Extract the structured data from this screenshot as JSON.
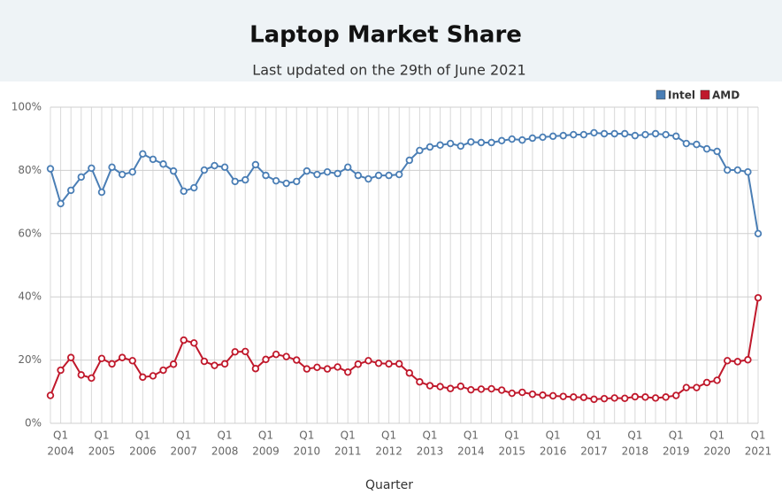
{
  "chart_data": {
    "type": "line",
    "title": "Laptop Market Share",
    "subtitle": "Last updated on the 29th of June 2021",
    "x_label": "Quarter",
    "categories": [
      null,
      "Q1",
      null,
      null,
      null,
      "Q1",
      null,
      null,
      null,
      "Q1",
      null,
      null,
      null,
      "Q1",
      null,
      null,
      null,
      "Q1",
      null,
      null,
      null,
      "Q1",
      null,
      null,
      null,
      "Q1",
      null,
      null,
      null,
      "Q1",
      null,
      null,
      null,
      "Q1",
      null,
      null,
      null,
      "Q1",
      null,
      null,
      null,
      "Q1",
      null,
      null,
      null,
      "Q1",
      null,
      null,
      null,
      "Q1",
      null,
      null,
      null,
      "Q1",
      null,
      null,
      null,
      "Q1",
      null,
      null,
      null,
      "Q1",
      null,
      null,
      null,
      "Q1",
      null,
      null,
      null,
      "Q1"
    ],
    "category_years": [
      null,
      "2004",
      null,
      null,
      null,
      "2005",
      null,
      null,
      null,
      "2006",
      null,
      null,
      null,
      "2007",
      null,
      null,
      null,
      "2008",
      null,
      null,
      null,
      "2009",
      null,
      null,
      null,
      "2010",
      null,
      null,
      null,
      "2011",
      null,
      null,
      null,
      "2012",
      null,
      null,
      null,
      "2013",
      null,
      null,
      null,
      "2014",
      null,
      null,
      null,
      "2015",
      null,
      null,
      null,
      "2016",
      null,
      null,
      null,
      "2017",
      null,
      null,
      null,
      "2018",
      null,
      null,
      null,
      "2019",
      null,
      null,
      null,
      "2020",
      null,
      null,
      null,
      "2021"
    ],
    "series": [
      {
        "name": "Intel",
        "color": "#4a7eb5",
        "values": [
          80.5,
          69.5,
          73.7,
          77.9,
          80.7,
          73.1,
          81,
          78.7,
          79.5,
          85.2,
          83.5,
          82,
          79.8,
          73.4,
          74.5,
          80.1,
          81.5,
          81,
          76.5,
          77,
          81.8,
          78.4,
          76.7,
          75.9,
          76.5,
          79.8,
          78.7,
          79.5,
          79,
          81,
          78.4,
          77.3,
          78.4,
          78.4,
          78.7,
          83.2,
          86.3,
          87.4,
          88,
          88.5,
          87.7,
          89,
          88.8,
          88.8,
          89.4,
          89.9,
          89.6,
          90.2,
          90.5,
          90.8,
          91,
          91.3,
          91.3,
          91.9,
          91.6,
          91.6,
          91.6,
          91,
          91.3,
          91.6,
          91.3,
          90.8,
          88.5,
          88.2,
          86.8,
          86,
          80.1,
          80.1,
          79.5,
          60
        ]
      },
      {
        "name": "AMD",
        "color": "#c0182b",
        "values": [
          8.8,
          16.8,
          20.8,
          15.3,
          14.3,
          20.5,
          18.8,
          20.8,
          19.8,
          14.6,
          15,
          16.8,
          18.7,
          26.3,
          25.4,
          19.6,
          18.3,
          18.8,
          22.6,
          22.7,
          17.3,
          20.2,
          21.8,
          21.1,
          20,
          17.2,
          17.7,
          17.2,
          17.8,
          16.2,
          18.7,
          19.8,
          19,
          18.8,
          18.8,
          15.9,
          13.1,
          11.9,
          11.6,
          11,
          11.7,
          10.6,
          10.8,
          10.9,
          10.5,
          9.5,
          9.8,
          9.2,
          8.9,
          8.7,
          8.5,
          8.3,
          8.2,
          7.6,
          7.8,
          8,
          7.9,
          8.4,
          8.3,
          8,
          8.3,
          8.8,
          11.3,
          11.3,
          12.9,
          13.6,
          19.8,
          19.5,
          20.1,
          39.7
        ]
      }
    ],
    "ylim": [
      0,
      100
    ],
    "yticks": [
      {
        "value": 0,
        "label": "0%"
      },
      {
        "value": 20,
        "label": "20%"
      },
      {
        "value": 40,
        "label": "40%"
      },
      {
        "value": 60,
        "label": "60%"
      },
      {
        "value": 80,
        "label": "80%"
      },
      {
        "value": 100,
        "label": "100%"
      }
    ],
    "grid": true,
    "legend": "top-right"
  }
}
